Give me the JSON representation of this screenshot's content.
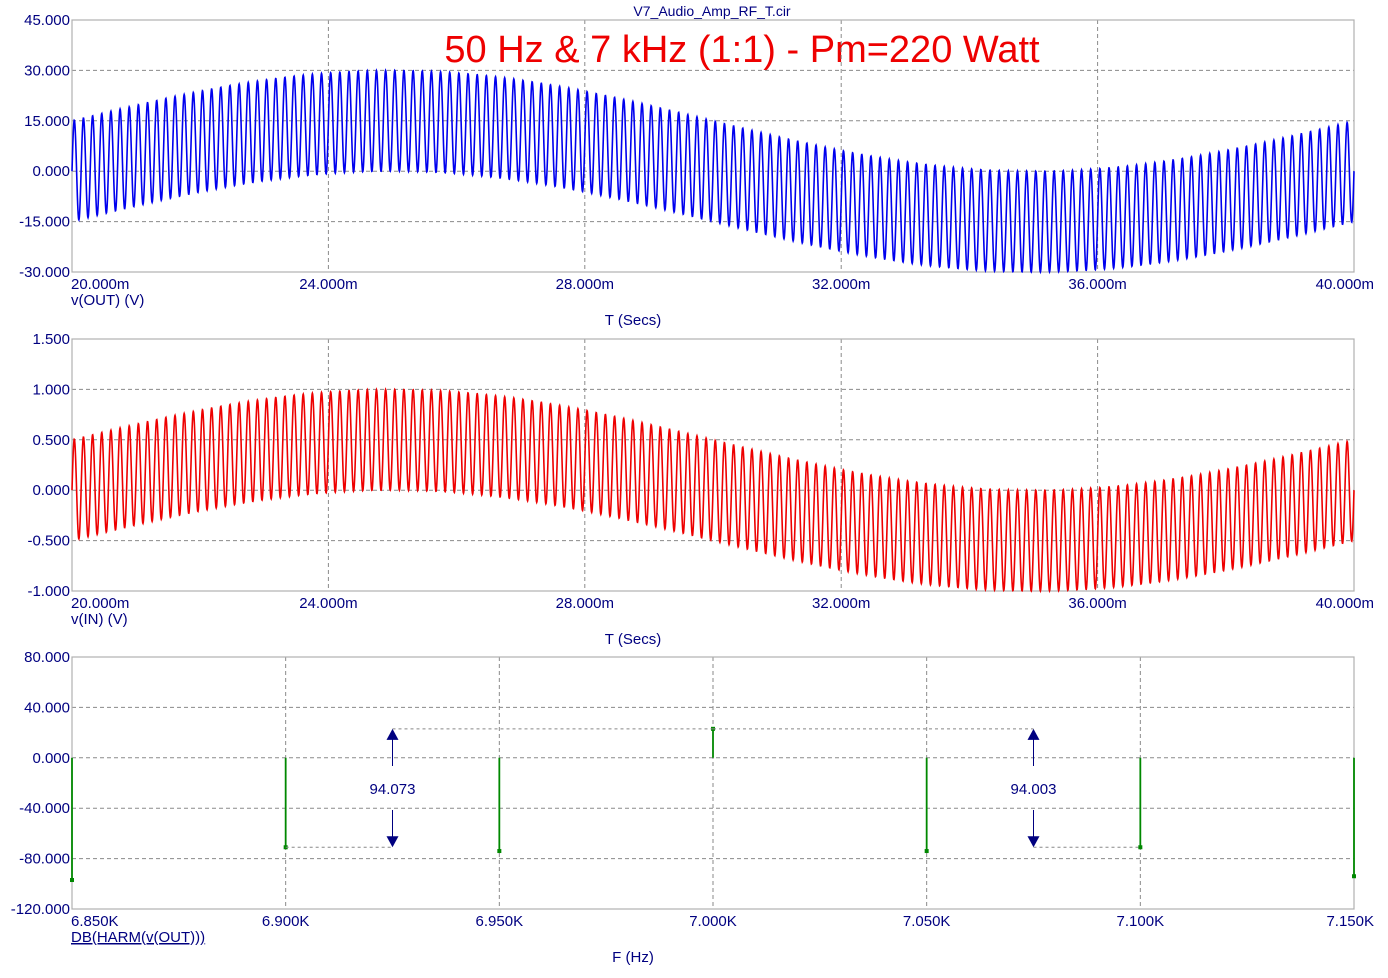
{
  "file_title": "V7_Audio_Amp_RF_T.cir",
  "headline": "50 Hz & 7 kHz (1:1)  - Pm=220 Watt",
  "colors": {
    "out": "#0000ee",
    "in": "#ee0000",
    "harm": "#008800",
    "axis_text": "#000080",
    "measure": "#000080",
    "headline": "#ee0000"
  },
  "chart_data": [
    {
      "type": "line",
      "series": [
        {
          "name": "v(OUT) (V)",
          "color": "#0000ee",
          "signal": {
            "hf_freq_hz": 7000,
            "hf_amplitude": 15,
            "lf_freq_hz": 50,
            "lf_amplitude": 15
          }
        }
      ],
      "xlim": [
        0.02,
        0.04
      ],
      "ylim": [
        -30,
        45
      ],
      "x_ticks": [
        "20.000m",
        "24.000m",
        "28.000m",
        "32.000m",
        "36.000m",
        "40.000m"
      ],
      "y_ticks": [
        "45.000",
        "30.000",
        "15.000",
        "0.000",
        "-15.000",
        "-30.000"
      ],
      "y_tick_values": [
        45,
        30,
        15,
        0,
        -15,
        -30
      ],
      "xlabel": "T (Secs)",
      "trace_label": "v(OUT) (V)",
      "grid": true
    },
    {
      "type": "line",
      "series": [
        {
          "name": "v(IN) (V)",
          "color": "#ee0000",
          "signal": {
            "hf_freq_hz": 7000,
            "hf_amplitude": 0.5,
            "lf_freq_hz": 50,
            "lf_amplitude": 0.5
          }
        }
      ],
      "xlim": [
        0.02,
        0.04
      ],
      "ylim": [
        -1,
        1.5
      ],
      "x_ticks": [
        "20.000m",
        "24.000m",
        "28.000m",
        "32.000m",
        "36.000m",
        "40.000m"
      ],
      "y_ticks": [
        "1.500",
        "1.000",
        "0.500",
        "0.000",
        "-0.500",
        "-1.000"
      ],
      "y_tick_values": [
        1.5,
        1.0,
        0.5,
        0.0,
        -0.5,
        -1.0
      ],
      "xlabel": "T (Secs)",
      "trace_label": "v(IN) (V)",
      "grid": true
    },
    {
      "type": "bar",
      "series": [
        {
          "name": "DB(HARM(v(OUT)))",
          "color": "#008800",
          "points": [
            {
              "x": 6850,
              "y": -97
            },
            {
              "x": 6900,
              "y": -71
            },
            {
              "x": 6950,
              "y": -74
            },
            {
              "x": 7000,
              "y": 23
            },
            {
              "x": 7050,
              "y": -74
            },
            {
              "x": 7100,
              "y": -71
            },
            {
              "x": 7150,
              "y": -94
            }
          ]
        }
      ],
      "xlim": [
        6850,
        7150
      ],
      "ylim": [
        -120,
        80
      ],
      "x_ticks": [
        "6.850K",
        "6.900K",
        "6.950K",
        "7.000K",
        "7.050K",
        "7.100K",
        "7.150K"
      ],
      "y_ticks": [
        "80.000",
        "40.000",
        "0.000",
        "-40.000",
        "-80.000",
        "-120.000"
      ],
      "y_tick_values": [
        80,
        40,
        0,
        -40,
        -80,
        -120
      ],
      "xlabel": "F (Hz)",
      "trace_label": "DB(HARM(v(OUT)))",
      "grid": true,
      "annotations": [
        {
          "label": "94.073",
          "x": 6925,
          "y_top": 23,
          "y_bottom": -71
        },
        {
          "label": "94.003",
          "x": 7075,
          "y_top": 23,
          "y_bottom": -71
        }
      ]
    }
  ]
}
